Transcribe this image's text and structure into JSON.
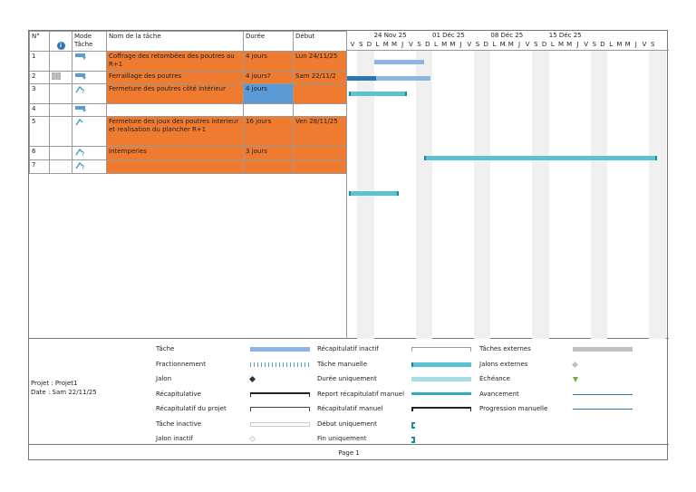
{
  "header": {
    "num": "N°",
    "info_icon": "info-icon",
    "mode": "Mode Tâche",
    "name": "Nom de la tâche",
    "duration": "Durée",
    "start": "Début"
  },
  "timeline": {
    "weeks": [
      "24 Nov 25",
      "01 Déc 25",
      "08 Déc 25",
      "15 Déc 25"
    ],
    "days": [
      "V",
      "S",
      "D",
      "L",
      "M",
      "M",
      "J",
      "V",
      "S",
      "D",
      "L",
      "M",
      "M",
      "J",
      "V",
      "S",
      "D",
      "L",
      "M",
      "M",
      "J",
      "V",
      "S",
      "D",
      "L",
      "M",
      "M",
      "J",
      "V",
      "S",
      "D",
      "L",
      "M",
      "M",
      "J",
      "V",
      "S"
    ]
  },
  "rows": [
    {
      "id": "1",
      "name": "Coffrage des retombées des poutres au R+1",
      "duration": "4 jours",
      "start": "Lun 24/11/25"
    },
    {
      "id": "2",
      "name": "Ferraillage des poutres",
      "duration": "4 jours?",
      "start": "Sam 22/11/2"
    },
    {
      "id": "3",
      "name": "Fermeture des poutres côté intérieur",
      "duration": "4 jours",
      "start": ""
    },
    {
      "id": "4",
      "name": "",
      "duration": "",
      "start": ""
    },
    {
      "id": "5",
      "name": "Fermeture des joux des poutres interieur et realisation du plancher R+1",
      "duration": "16 jours",
      "start": "Ven 28/11/25"
    },
    {
      "id": "6",
      "name": "Intemperies",
      "duration": "3 jours",
      "start": ""
    },
    {
      "id": "7",
      "name": "",
      "duration": "",
      "start": ""
    }
  ],
  "project": {
    "name": "Projet : Projet1",
    "date": "Date : Sam 22/11/25"
  },
  "legend": {
    "col1": [
      "Tâche",
      "Fractionnement",
      "Jalon",
      "Récapitulative",
      "Récapitulatif du projet",
      "Tâche inactive",
      "Jalon inactif"
    ],
    "col2": [
      "Récapitulatif inactif",
      "Tâche manuelle",
      "Durée uniquement",
      "Report récapitulatif manuel",
      "Récapitulatif manuel",
      "Début uniquement",
      "Fin uniquement"
    ],
    "col3": [
      "Tâches externes",
      "Jalons externes",
      "Échéance",
      "Avancement",
      "Progression manuelle"
    ]
  },
  "footer": {
    "page": "Page 1"
  },
  "colors": {
    "task_row": "#ee7b30",
    "selected_cell": "#5b9bd5",
    "bar_auto": "#8db4e2",
    "bar_manual": "#5bc3cf"
  }
}
